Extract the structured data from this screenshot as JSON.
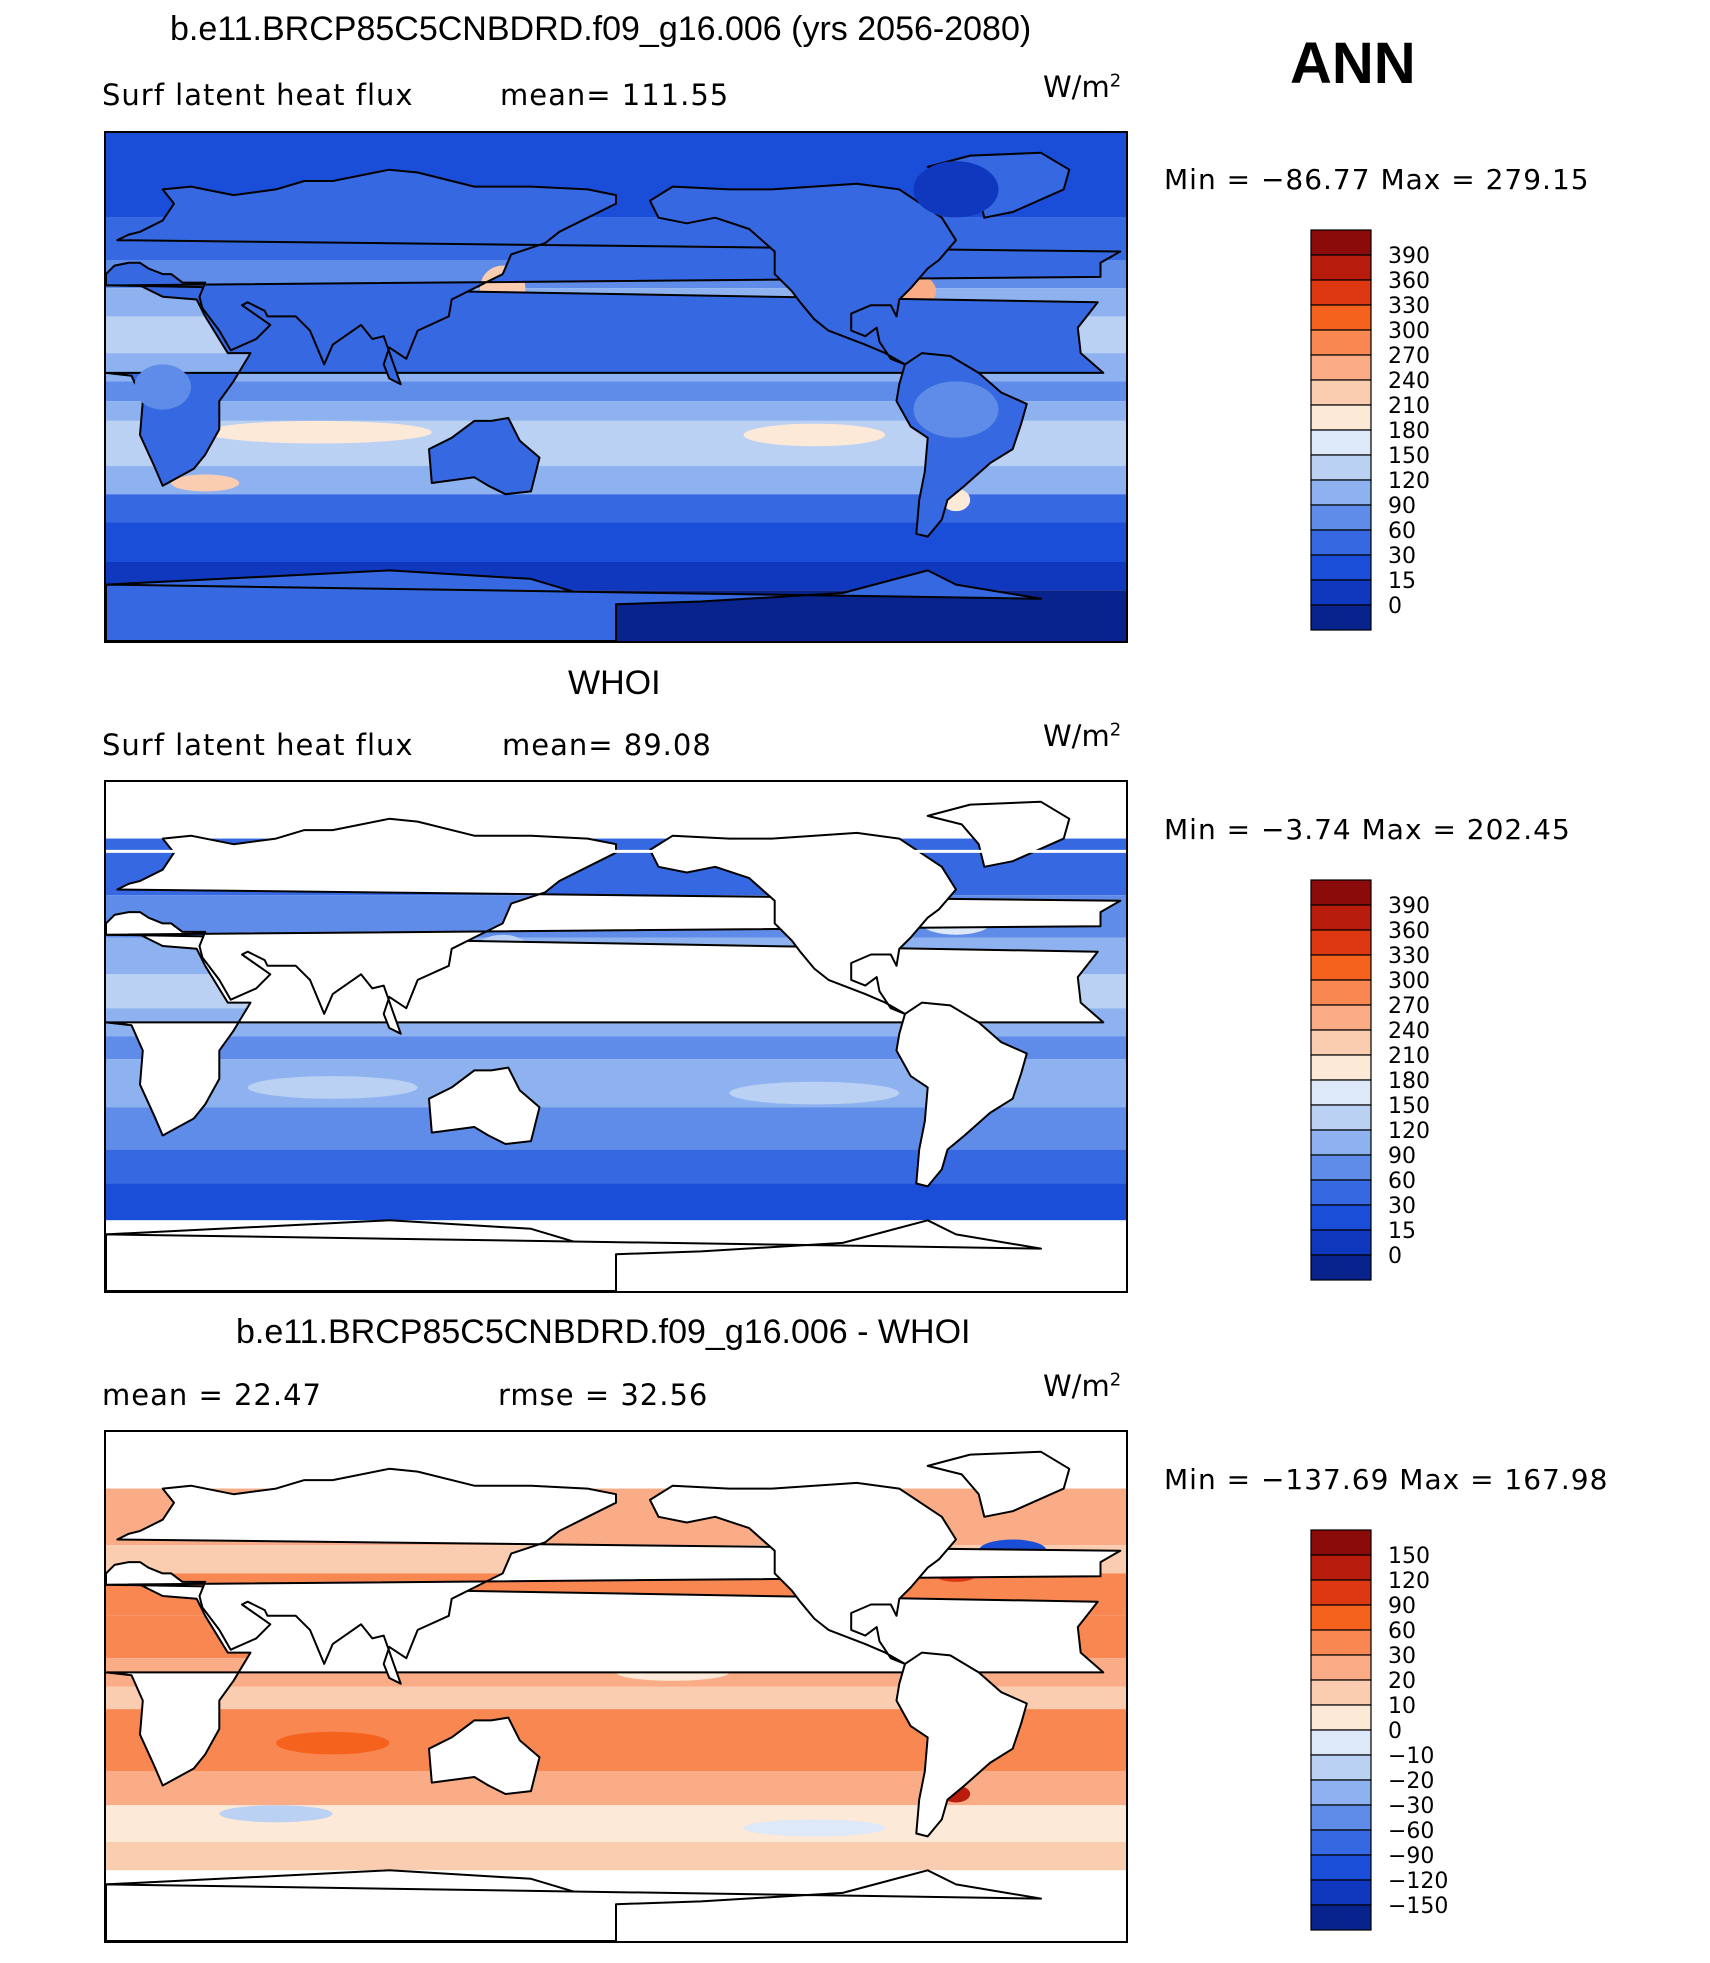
{
  "header": {
    "season": "ANN"
  },
  "panels": [
    {
      "title": "b.e11.BRCP85C5CNBDRD.f09_g16.006 (yrs 2056-2080)",
      "left_label": "Surf  latent  heat  flux",
      "stat_label": "mean=  111.55",
      "units": "W/m",
      "units_sup": "2",
      "minmax": "Min  =  −86.77  Max  =  279.15",
      "colorbar": {
        "labels": [
          "390",
          "360",
          "330",
          "300",
          "270",
          "240",
          "210",
          "180",
          "150",
          "120",
          "90",
          "60",
          "30",
          "15",
          "0"
        ],
        "colors": [
          "#8b0a0a",
          "#b71c0c",
          "#de3812",
          "#f5621e",
          "#f88752",
          "#f9ac86",
          "#fbcdb0",
          "#fde9d8",
          "#dde9f8",
          "#bad1f4",
          "#8db2ef",
          "#5e8ce8",
          "#3668e1",
          "#1a4ed8",
          "#0f38bf",
          "#08238c"
        ]
      },
      "mode": "model"
    },
    {
      "title": "WHOI",
      "left_label": "Surf  latent  heat  flux",
      "stat_label": "mean=   89.08",
      "units": "W/m",
      "units_sup": "2",
      "minmax": "Min  =    −3.74  Max  =  202.45",
      "colorbar": {
        "labels": [
          "390",
          "360",
          "330",
          "300",
          "270",
          "240",
          "210",
          "180",
          "150",
          "120",
          "90",
          "60",
          "30",
          "15",
          "0"
        ],
        "colors": [
          "#8b0a0a",
          "#b71c0c",
          "#de3812",
          "#f5621e",
          "#f88752",
          "#f9ac86",
          "#fbcdb0",
          "#fde9d8",
          "#dde9f8",
          "#bad1f4",
          "#8db2ef",
          "#5e8ce8",
          "#3668e1",
          "#1a4ed8",
          "#0f38bf",
          "#08238c"
        ]
      },
      "mode": "obs"
    },
    {
      "title": "b.e11.BRCP85C5CNBDRD.f09_g16.006 - WHOI",
      "left_label": "mean  =    22.47",
      "stat_label": "rmse  =    32.56",
      "units": "W/m",
      "units_sup": "2",
      "minmax": "Min  =  −137.69  Max  =  167.98",
      "colorbar": {
        "labels": [
          "150",
          "120",
          "90",
          "60",
          "30",
          "20",
          "10",
          "0",
          "−10",
          "−20",
          "−30",
          "−60",
          "−90",
          "−120",
          "−150"
        ],
        "colors": [
          "#8b0a0a",
          "#b71c0c",
          "#de3812",
          "#f5621e",
          "#f88752",
          "#f9ac86",
          "#fbcdb0",
          "#fde9d8",
          "#dde9f8",
          "#bad1f4",
          "#8db2ef",
          "#5e8ce8",
          "#3668e1",
          "#1a4ed8",
          "#0f38bf",
          "#08238c"
        ]
      },
      "mode": "diff"
    }
  ],
  "chart_data": {
    "type": "heatmap",
    "title": "ANN",
    "description_values": [
      {
        "panel": "b.e11.BRCP85C5CNBDRD.f09_g16.006 (yrs 2056-2080)",
        "mean": 111.55,
        "min": -86.77,
        "max": 279.15,
        "units": "W/m2"
      },
      {
        "panel": "WHOI",
        "mean": 89.08,
        "min": -3.74,
        "max": 202.45,
        "units": "W/m2"
      },
      {
        "panel": "b.e11.BRCP85C5CNBDRD.f09_g16.006 - WHOI",
        "mean": 22.47,
        "rmse": 32.56,
        "min": -137.69,
        "max": 167.98,
        "units": "W/m2"
      }
    ],
    "colorbar_levels_abs": [
      0,
      15,
      30,
      60,
      90,
      120,
      150,
      180,
      210,
      240,
      270,
      300,
      330,
      360,
      390
    ],
    "colorbar_levels_diff": [
      -150,
      -120,
      -90,
      -60,
      -30,
      -20,
      -10,
      0,
      10,
      20,
      30,
      60,
      90,
      120,
      150
    ]
  }
}
